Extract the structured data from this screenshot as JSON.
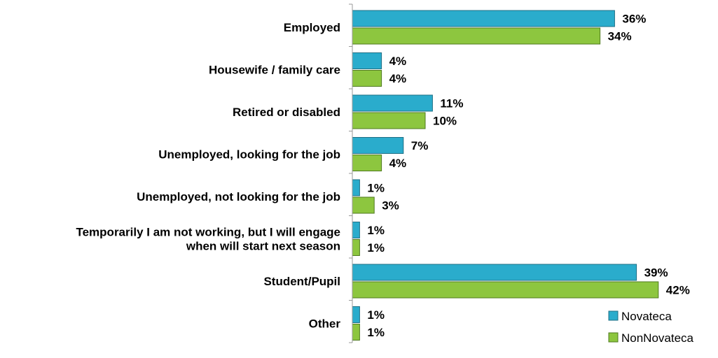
{
  "chart_data": {
    "type": "bar",
    "orientation": "horizontal",
    "categories": [
      [
        "Employed"
      ],
      [
        "Housewife / family care"
      ],
      [
        "Retired or disabled"
      ],
      [
        "Unemployed, looking for the job"
      ],
      [
        "Unemployed, not looking for the job"
      ],
      [
        "Temporarily I am not working, but I will engage",
        "when will start next season"
      ],
      [
        "Student/Pupil"
      ],
      [
        "Other"
      ]
    ],
    "series": [
      {
        "name": "Novateca",
        "color": "#2aaccc",
        "values": [
          36,
          4,
          11,
          7,
          1,
          1,
          39,
          1
        ],
        "labels": [
          "36%",
          "4%",
          "11%",
          "7%",
          "1%",
          "1%",
          "39%",
          "1%"
        ]
      },
      {
        "name": "NonNovateca",
        "color": "#8dc63f",
        "values": [
          34,
          4,
          10,
          4,
          3,
          1,
          42,
          1
        ],
        "labels": [
          "34%",
          "4%",
          "10%",
          "4%",
          "3%",
          "1%",
          "42%",
          "1%"
        ]
      }
    ],
    "xlim": [
      0,
      48
    ],
    "legend_position": "bottom-right",
    "grid": false
  }
}
